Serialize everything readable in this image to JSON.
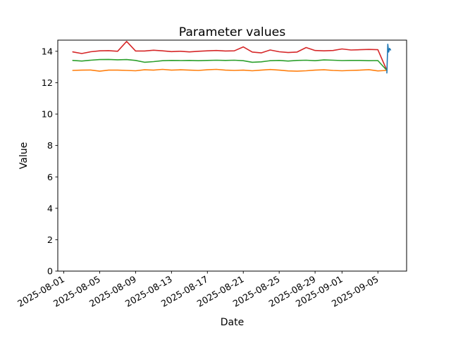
{
  "chart_data": {
    "type": "line",
    "title": "Parameter values",
    "xlabel": "Date",
    "ylabel": "Value",
    "x_unit": "days since 2025-08-01",
    "xlim": [
      -0.67,
      38.2
    ],
    "ylim": [
      0,
      14.71
    ],
    "grid": false,
    "legend": "none",
    "y_ticks": [
      0,
      2,
      4,
      6,
      8,
      10,
      12,
      14
    ],
    "x_ticks": [
      {
        "offset": 0,
        "label": "2025-08-01"
      },
      {
        "offset": 4,
        "label": "2025-08-05"
      },
      {
        "offset": 8,
        "label": "2025-08-09"
      },
      {
        "offset": 12,
        "label": "2025-08-13"
      },
      {
        "offset": 16,
        "label": "2025-08-17"
      },
      {
        "offset": 20,
        "label": "2025-08-21"
      },
      {
        "offset": 24,
        "label": "2025-08-25"
      },
      {
        "offset": 28,
        "label": "2025-08-29"
      },
      {
        "offset": 31,
        "label": "2025-09-01"
      },
      {
        "offset": 35,
        "label": "2025-09-05"
      }
    ],
    "series": [
      {
        "name": "red",
        "color": "#d62728",
        "start_date": "2025-08-02",
        "x": [
          1,
          2,
          3,
          4,
          5,
          6,
          7,
          8,
          9,
          10,
          11,
          12,
          13,
          14,
          15,
          16,
          17,
          18,
          19,
          20,
          21,
          22,
          23,
          24,
          25,
          26,
          27,
          28,
          29,
          30,
          31,
          32,
          33,
          34,
          35,
          36
        ],
        "y": [
          13.96,
          13.86,
          13.97,
          14.03,
          14.04,
          14.0,
          14.63,
          14.02,
          14.02,
          14.07,
          14.03,
          13.98,
          14.0,
          13.96,
          14.0,
          14.03,
          14.05,
          14.02,
          14.03,
          14.28,
          13.95,
          13.9,
          14.08,
          13.97,
          13.92,
          13.95,
          14.24,
          14.05,
          14.03,
          14.05,
          14.15,
          14.08,
          14.1,
          14.12,
          14.1,
          12.78
        ]
      },
      {
        "name": "green",
        "color": "#2ca02c",
        "start_date": "2025-08-02",
        "x": [
          1,
          2,
          3,
          4,
          5,
          6,
          7,
          8,
          9,
          10,
          11,
          12,
          13,
          14,
          15,
          16,
          17,
          18,
          19,
          20,
          21,
          22,
          23,
          24,
          25,
          26,
          27,
          28,
          29,
          30,
          31,
          32,
          33,
          34,
          35,
          36
        ],
        "y": [
          13.42,
          13.38,
          13.43,
          13.47,
          13.48,
          13.46,
          13.47,
          13.42,
          13.3,
          13.34,
          13.4,
          13.42,
          13.41,
          13.42,
          13.4,
          13.42,
          13.43,
          13.42,
          13.43,
          13.4,
          13.3,
          13.33,
          13.4,
          13.42,
          13.38,
          13.42,
          13.43,
          13.4,
          13.45,
          13.43,
          13.41,
          13.42,
          13.42,
          13.4,
          13.41,
          12.78
        ]
      },
      {
        "name": "orange",
        "color": "#ff7f0e",
        "start_date": "2025-08-02",
        "x": [
          1,
          2,
          3,
          4,
          5,
          6,
          7,
          8,
          9,
          10,
          11,
          12,
          13,
          14,
          15,
          16,
          17,
          18,
          19,
          20,
          21,
          22,
          23,
          24,
          25,
          26,
          27,
          28,
          29,
          30,
          31,
          32,
          33,
          34,
          35,
          36
        ],
        "y": [
          12.78,
          12.8,
          12.81,
          12.73,
          12.8,
          12.8,
          12.78,
          12.76,
          12.82,
          12.8,
          12.85,
          12.8,
          12.82,
          12.8,
          12.78,
          12.82,
          12.85,
          12.8,
          12.78,
          12.8,
          12.76,
          12.8,
          12.84,
          12.8,
          12.75,
          12.73,
          12.76,
          12.8,
          12.82,
          12.78,
          12.76,
          12.78,
          12.8,
          12.83,
          12.75,
          12.78
        ]
      },
      {
        "name": "blue",
        "color": "#1f77b4",
        "start_date": "2025-09-06",
        "x": [
          36.0,
          36.1,
          36.2,
          36.3,
          36.42
        ],
        "y": [
          12.62,
          14.45,
          13.95,
          14.18,
          14.08
        ]
      }
    ]
  }
}
